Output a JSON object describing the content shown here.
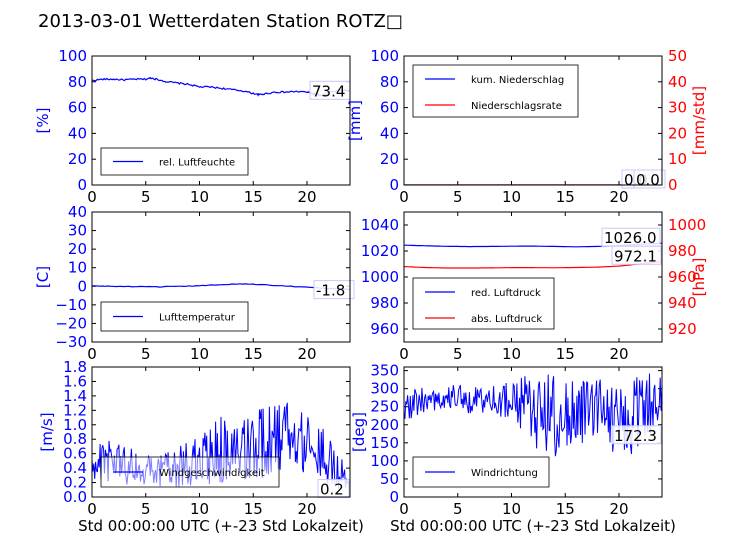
{
  "title": "2013-03-01 Wetterdaten Station ROTZ□",
  "colors": {
    "blue": "#0000ff",
    "red": "#ff0000",
    "black": "#000000"
  },
  "chart_data": [
    {
      "id": "humidity",
      "type": "line",
      "x": [
        0,
        1,
        2,
        3,
        4,
        5,
        5.5,
        6,
        7,
        8,
        9,
        10,
        11,
        12,
        13,
        14,
        15,
        15.5,
        16,
        17,
        18,
        19,
        20,
        20.5,
        21,
        21.5,
        22,
        23,
        24
      ],
      "series": [
        {
          "name": "rel. Luftfeuchte",
          "color": "#0000ff",
          "values": [
            81,
            82,
            82,
            81.5,
            82,
            82,
            83,
            82,
            80,
            79,
            78,
            76,
            76,
            75,
            74,
            73,
            71,
            70,
            70.5,
            72,
            72,
            72.5,
            72,
            71,
            70,
            69,
            72,
            73,
            73.4
          ]
        }
      ],
      "xlim": [
        0,
        24
      ],
      "ylim": [
        0,
        100
      ],
      "xticks": [
        "0",
        "5",
        "10",
        "15",
        "20"
      ],
      "yticks": [
        "0",
        "20",
        "40",
        "60",
        "80",
        "100"
      ],
      "ylabel": "[%]",
      "annotations": [
        "73.4"
      ],
      "legend": "lower-left"
    },
    {
      "id": "precip",
      "type": "line",
      "x": [
        0,
        24
      ],
      "series": [
        {
          "name": "kum. Niederschlag",
          "color": "#0000ff",
          "values": [
            0,
            0
          ]
        },
        {
          "name": "Niederschlagsrate",
          "color": "#ff0000",
          "values": [
            0,
            0
          ]
        }
      ],
      "xlim": [
        0,
        24
      ],
      "ylim": [
        0,
        100
      ],
      "y2lim": [
        0,
        50
      ],
      "xticks": [
        "0",
        "5",
        "10",
        "15",
        "20"
      ],
      "yticks": [
        "0",
        "20",
        "40",
        "60",
        "80",
        "100"
      ],
      "y2ticks": [
        "0",
        "10",
        "20",
        "30",
        "40",
        "50"
      ],
      "ylabel": "[mm]",
      "y2label": "[mm/std]",
      "annotations": [
        "0.0",
        "0.0"
      ],
      "legend": "upper-left"
    },
    {
      "id": "temp",
      "type": "line",
      "x": [
        0,
        2,
        4,
        6,
        8,
        10,
        12,
        14,
        16,
        18,
        20,
        22,
        24
      ],
      "series": [
        {
          "name": "Lufttemperatur",
          "color": "#0000ff",
          "values": [
            0.2,
            0,
            -0.2,
            -0.3,
            -0.1,
            0.3,
            0.9,
            1.3,
            0.8,
            0.2,
            -0.5,
            -1.2,
            -1.8
          ]
        }
      ],
      "xlim": [
        0,
        24
      ],
      "ylim": [
        -30,
        40
      ],
      "xticks": [
        "0",
        "5",
        "10",
        "15",
        "20"
      ],
      "yticks": [
        "−30",
        "−20",
        "−10",
        "0",
        "10",
        "20",
        "30",
        "40"
      ],
      "ylabel": "[C]",
      "annotations": [
        "-1.8"
      ],
      "legend": "lower-left"
    },
    {
      "id": "pressure",
      "type": "line",
      "x": [
        0,
        2,
        4,
        6,
        8,
        10,
        12,
        14,
        16,
        18,
        20,
        22,
        24
      ],
      "series": [
        {
          "name": "red. Luftdruck",
          "color": "#0000ff",
          "values": [
            1024.5,
            1024,
            1023.6,
            1023.4,
            1023.5,
            1023.7,
            1023.8,
            1023.5,
            1023.2,
            1023.5,
            1024.2,
            1025.2,
            1026.0
          ]
        },
        {
          "name": "abs. Luftdruck",
          "color": "#ff0000",
          "values": [
            968,
            967.3,
            966.9,
            966.9,
            967,
            967.2,
            967.2,
            967.1,
            967.3,
            967.6,
            968.4,
            970.1,
            972.1
          ]
        }
      ],
      "xlim": [
        0,
        24
      ],
      "ylim": [
        950,
        1050
      ],
      "y2lim": [
        910,
        1010
      ],
      "xticks": [
        "0",
        "5",
        "10",
        "15",
        "20"
      ],
      "yticks": [
        "960",
        "980",
        "1000",
        "1020",
        "1040"
      ],
      "y2ticks": [
        "920",
        "940",
        "960",
        "980",
        "1000"
      ],
      "y2label": "[hPa]",
      "annotations": [
        "1026.0",
        "972.1"
      ],
      "legend": "lower-left"
    },
    {
      "id": "wind",
      "type": "line",
      "x_range": [
        0,
        24
      ],
      "samples": 288,
      "series": [
        {
          "name": "Windgeschwindigkeit",
          "color": "#0000ff",
          "envelope_x": [
            0,
            2,
            4,
            6,
            8,
            10,
            12,
            14,
            16,
            18,
            20,
            22,
            24
          ],
          "envelope_mean": [
            0.45,
            0.5,
            0.4,
            0.35,
            0.4,
            0.5,
            0.7,
            0.65,
            0.75,
            0.85,
            0.8,
            0.5,
            0.2
          ],
          "envelope_amp": [
            0.25,
            0.3,
            0.25,
            0.2,
            0.3,
            0.35,
            0.5,
            0.45,
            0.5,
            0.55,
            0.45,
            0.35,
            0.15
          ]
        }
      ],
      "xlim": [
        0,
        24
      ],
      "ylim": [
        0,
        1.8
      ],
      "xticks": [
        "0",
        "5",
        "10",
        "15",
        "20"
      ],
      "yticks": [
        "0.0",
        "0.2",
        "0.4",
        "0.6",
        "0.8",
        "1.0",
        "1.2",
        "1.4",
        "1.6",
        "1.8"
      ],
      "ylabel": "[m/s]",
      "xlabel": "Std 00:00:00 UTC (+-23 Std Lokalzeit)",
      "annotations": [
        "0.2"
      ],
      "legend": "lower-left"
    },
    {
      "id": "direction",
      "type": "line",
      "x_range": [
        0,
        24
      ],
      "samples": 288,
      "series": [
        {
          "name": "Windrichtung",
          "color": "#0000ff",
          "envelope_x": [
            0,
            2,
            4,
            6,
            8,
            10,
            12,
            14,
            16,
            18,
            20,
            22,
            24
          ],
          "envelope_mean": [
            250,
            270,
            275,
            270,
            265,
            270,
            240,
            220,
            230,
            250,
            200,
            240,
            280
          ],
          "envelope_amp": [
            40,
            40,
            35,
            40,
            40,
            50,
            110,
            120,
            90,
            80,
            100,
            110,
            60
          ]
        }
      ],
      "xlim": [
        0,
        24
      ],
      "ylim": [
        0,
        360
      ],
      "xticks": [
        "0",
        "5",
        "10",
        "15",
        "20"
      ],
      "yticks": [
        "0",
        "50",
        "100",
        "150",
        "200",
        "250",
        "300",
        "350"
      ],
      "ylabel": "[deg]",
      "xlabel": "Std 00:00:00 UTC (+-23 Std Lokalzeit)",
      "annotations": [
        "172.3"
      ],
      "legend": "lower-left"
    }
  ]
}
